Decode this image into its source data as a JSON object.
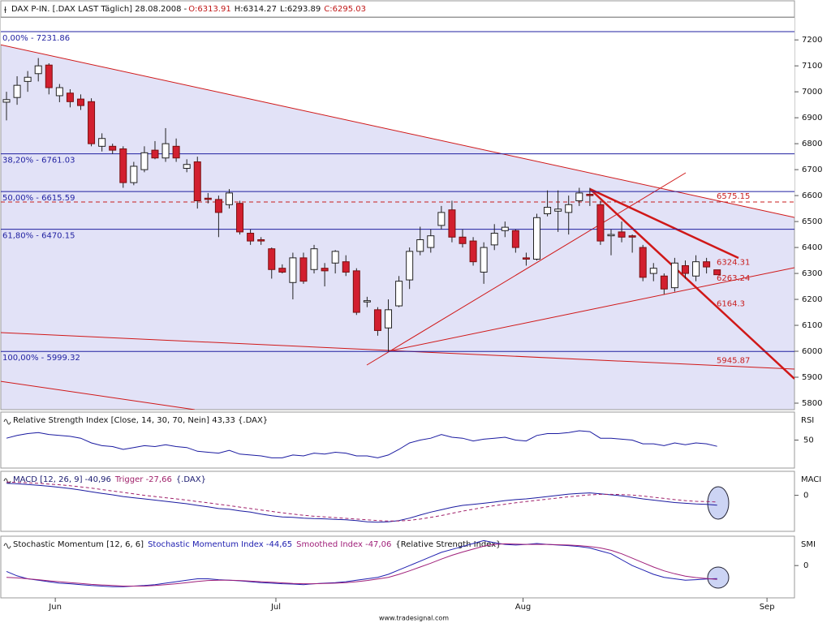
{
  "chart_data": {
    "type": "candlestick",
    "title": "DAX P-IN. [.DAX LAST Täglich] 28.08.2008 -",
    "ohlc_labels": [
      "O:6313.91",
      "H:6314.27",
      "L:6293.89",
      "C:6295.03"
    ],
    "ohlc_label_colors": [
      "#c01818",
      "#111111",
      "#111111",
      "#c01818"
    ],
    "up_color": "#ffffff",
    "down_color": "#d21f2f",
    "ylim": [
      5775,
      7285
    ],
    "yticks": [
      5800,
      5900,
      6000,
      6100,
      6200,
      6300,
      6400,
      6500,
      6600,
      6700,
      6800,
      6900,
      7000,
      7100,
      7200
    ],
    "xticks": [
      {
        "value": 4.6,
        "label": "Jun"
      },
      {
        "value": 25.4,
        "label": "Jul"
      },
      {
        "value": 48.7,
        "label": "Aug"
      },
      {
        "value": 71.7,
        "label": "Sep"
      }
    ],
    "open": [
      6960,
      6978,
      7040,
      7070,
      7103,
      6985,
      6995,
      6972,
      6962,
      6790,
      6790,
      6780,
      6650,
      6700,
      6775,
      6745,
      6790,
      6705,
      6730,
      6590,
      6585,
      6565,
      6570,
      6455,
      6430,
      6395,
      6320,
      6265,
      6360,
      6315,
      6320,
      6340,
      6345,
      6310,
      6190,
      6160,
      6090,
      6175,
      6275,
      6385,
      6400,
      6485,
      6545,
      6440,
      6425,
      6305,
      6410,
      6465,
      6465,
      6360,
      6355,
      6530,
      6540,
      6535,
      6580,
      6605,
      6565,
      6445,
      6460,
      6445,
      6400,
      6300,
      6290,
      6245,
      6330,
      6290,
      6345,
      6313.91
    ],
    "high": [
      7000,
      7060,
      7080,
      7130,
      7110,
      7030,
      7010,
      6990,
      6975,
      6840,
      6800,
      6790,
      6730,
      6790,
      6810,
      6860,
      6820,
      6740,
      6750,
      6610,
      6600,
      6625,
      6580,
      6470,
      6440,
      6400,
      6335,
      6380,
      6380,
      6410,
      6340,
      6390,
      6370,
      6320,
      6210,
      6170,
      6200,
      6290,
      6400,
      6480,
      6470,
      6560,
      6580,
      6470,
      6440,
      6420,
      6490,
      6500,
      6470,
      6380,
      6530,
      6620,
      6620,
      6600,
      6630,
      6630,
      6580,
      6470,
      6500,
      6450,
      6410,
      6340,
      6300,
      6360,
      6350,
      6370,
      6360,
      6314.27
    ],
    "low": [
      6890,
      6950,
      7000,
      7040,
      6990,
      6960,
      6940,
      6930,
      6790,
      6770,
      6760,
      6630,
      6640,
      6690,
      6740,
      6730,
      6730,
      6690,
      6550,
      6570,
      6440,
      6550,
      6450,
      6410,
      6410,
      6280,
      6300,
      6200,
      6260,
      6300,
      6250,
      6300,
      6290,
      6140,
      6170,
      6060,
      6000,
      6170,
      6240,
      6370,
      6380,
      6470,
      6420,
      6400,
      6330,
      6260,
      6390,
      6440,
      6380,
      6330,
      6350,
      6520,
      6460,
      6450,
      6560,
      6560,
      6410,
      6370,
      6420,
      6380,
      6270,
      6270,
      6220,
      6230,
      6280,
      6270,
      6300,
      6293.89
    ],
    "close": [
      6970,
      7025,
      7056,
      7100,
      7016,
      7016,
      6962,
      6947,
      6800,
      6820,
      6775,
      6650,
      6713,
      6765,
      6745,
      6800,
      6745,
      6720,
      6580,
      6585,
      6535,
      6610,
      6460,
      6425,
      6425,
      6315,
      6305,
      6360,
      6270,
      6395,
      6310,
      6385,
      6305,
      6150,
      6195,
      6080,
      6160,
      6270,
      6385,
      6430,
      6445,
      6535,
      6440,
      6415,
      6345,
      6400,
      6455,
      6478,
      6400,
      6355,
      6515,
      6555,
      6548,
      6565,
      6610,
      6600,
      6425,
      6450,
      6440,
      6440,
      6285,
      6320,
      6240,
      6340,
      6300,
      6345,
      6325,
      6295.03
    ],
    "fib_color": "#1f1fa0",
    "fib_levels": [
      {
        "value": 7231.86,
        "label": "0,00% - 7231.86"
      },
      {
        "value": 6761.03,
        "label": "38,20% - 6761.03"
      },
      {
        "value": 6615.59,
        "label": "50,00% - 6615.59"
      },
      {
        "value": 6470.15,
        "label": "61,80% - 6470.15"
      },
      {
        "value": 5999.32,
        "label": "100,00% - 5999.32"
      }
    ],
    "annotation_color": "#c81e1e",
    "dashed_level": 6575.15,
    "annotations": [
      6324.31,
      6263.24,
      6164.3,
      5945.87
    ],
    "indicators": [
      {
        "legend": [
          {
            "text": "Relative Strength Index [Close, 14, 30, 70, Nein] 43,33 {.DAX}",
            "color": "#111111"
          }
        ],
        "axis_label": "RSI",
        "ylim": [
          20,
          80
        ],
        "yticks": [
          50
        ],
        "series": [
          {
            "color": "#1a1aa0",
            "dash": false,
            "values": [
              52,
              55,
              57,
              58,
              56,
              55,
              54,
              52,
              47,
              44,
              43,
              40,
              42,
              44,
              43,
              45,
              43,
              42,
              38,
              37,
              36,
              39,
              35,
              34,
              33,
              31,
              31,
              34,
              33,
              36,
              35,
              37,
              36,
              33,
              33,
              31,
              34,
              40,
              47,
              50,
              52,
              56,
              53,
              52,
              49,
              51,
              52,
              53,
              50,
              49,
              55,
              57,
              57,
              58,
              60,
              59,
              52,
              52,
              51,
              50,
              46,
              46,
              44,
              47,
              45,
              47,
              46,
              43.33
            ]
          }
        ]
      },
      {
        "legend": [
          {
            "text": "MACD [12, 26, 9] -40,96",
            "color": "#1a1a70"
          },
          {
            "text": "Trigger -27,66",
            "color": "#a0206a"
          },
          {
            "text": "{.DAX}",
            "color": "#1a1a70"
          }
        ],
        "axis_label": "MACI",
        "ylim": [
          -150,
          100
        ],
        "yticks": [
          0
        ],
        "series": [
          {
            "color": "#1a1aa0",
            "dash": false,
            "values": [
              50,
              48,
              45,
              42,
              38,
              33,
              28,
              22,
              15,
              8,
              2,
              -5,
              -10,
              -15,
              -20,
              -25,
              -30,
              -35,
              -42,
              -48,
              -55,
              -58,
              -65,
              -70,
              -78,
              -85,
              -90,
              -92,
              -95,
              -97,
              -98,
              -100,
              -102,
              -105,
              -110,
              -112,
              -110,
              -105,
              -95,
              -82,
              -70,
              -60,
              -50,
              -42,
              -38,
              -33,
              -28,
              -22,
              -18,
              -15,
              -10,
              -5,
              0,
              5,
              8,
              10,
              6,
              2,
              -2,
              -8,
              -15,
              -20,
              -25,
              -30,
              -33,
              -36,
              -38,
              -40.96
            ]
          },
          {
            "color": "#a0206a",
            "dash": true,
            "values": [
              55,
              54,
              52,
              50,
              47,
              44,
              40,
              35,
              30,
              24,
              18,
              12,
              6,
              0,
              -5,
              -10,
              -15,
              -20,
              -26,
              -31,
              -37,
              -43,
              -49,
              -55,
              -61,
              -67,
              -73,
              -78,
              -83,
              -87,
              -90,
              -93,
              -96,
              -99,
              -102,
              -105,
              -107,
              -107,
              -104,
              -99,
              -92,
              -84,
              -75,
              -66,
              -58,
              -50,
              -43,
              -37,
              -31,
              -26,
              -21,
              -16,
              -11,
              -6,
              -2,
              2,
              4,
              4,
              3,
              1,
              -3,
              -8,
              -13,
              -18,
              -22,
              -25,
              -26,
              -27.66
            ]
          }
        ]
      },
      {
        "legend": [
          {
            "text": "Stochastic Momentum [12, 6, 6]",
            "color": "#111111"
          },
          {
            "text": "Stochastic Momentum Index -44,65",
            "color": "#2020b0"
          },
          {
            "text": "Smoothed Index -47,06",
            "color": "#a0207a"
          },
          {
            "text": "{Relative Strength Index}",
            "color": "#111111"
          }
        ],
        "axis_label": "SMI",
        "ylim": [
          -110,
          100
        ],
        "yticks": [
          0
        ],
        "series": [
          {
            "color": "#2020b0",
            "dash": false,
            "values": [
              -20,
              -35,
              -45,
              -50,
              -55,
              -60,
              -62,
              -65,
              -68,
              -70,
              -72,
              -72,
              -70,
              -68,
              -65,
              -60,
              -55,
              -50,
              -45,
              -45,
              -48,
              -50,
              -52,
              -55,
              -58,
              -60,
              -62,
              -63,
              -65,
              -62,
              -60,
              -58,
              -55,
              -50,
              -45,
              -40,
              -30,
              -15,
              0,
              15,
              30,
              45,
              55,
              65,
              75,
              85,
              78,
              72,
              70,
              72,
              75,
              72,
              70,
              68,
              65,
              60,
              50,
              40,
              20,
              0,
              -15,
              -30,
              -40,
              -45,
              -50,
              -48,
              -46,
              -44.65
            ]
          },
          {
            "color": "#a0207a",
            "dash": false,
            "values": [
              -40,
              -42,
              -45,
              -48,
              -52,
              -55,
              -58,
              -61,
              -64,
              -66,
              -68,
              -70,
              -70,
              -70,
              -68,
              -65,
              -62,
              -58,
              -54,
              -51,
              -50,
              -50,
              -51,
              -53,
              -55,
              -57,
              -59,
              -61,
              -62,
              -62,
              -61,
              -60,
              -58,
              -55,
              -51,
              -46,
              -40,
              -30,
              -18,
              -5,
              8,
              22,
              35,
              46,
              56,
              66,
              72,
              74,
              73,
              72,
              72,
              72,
              71,
              70,
              68,
              65,
              60,
              52,
              40,
              25,
              10,
              -5,
              -18,
              -28,
              -36,
              -41,
              -44,
              -47.06
            ]
          }
        ]
      }
    ],
    "footer": "www.tradesignal.com"
  }
}
